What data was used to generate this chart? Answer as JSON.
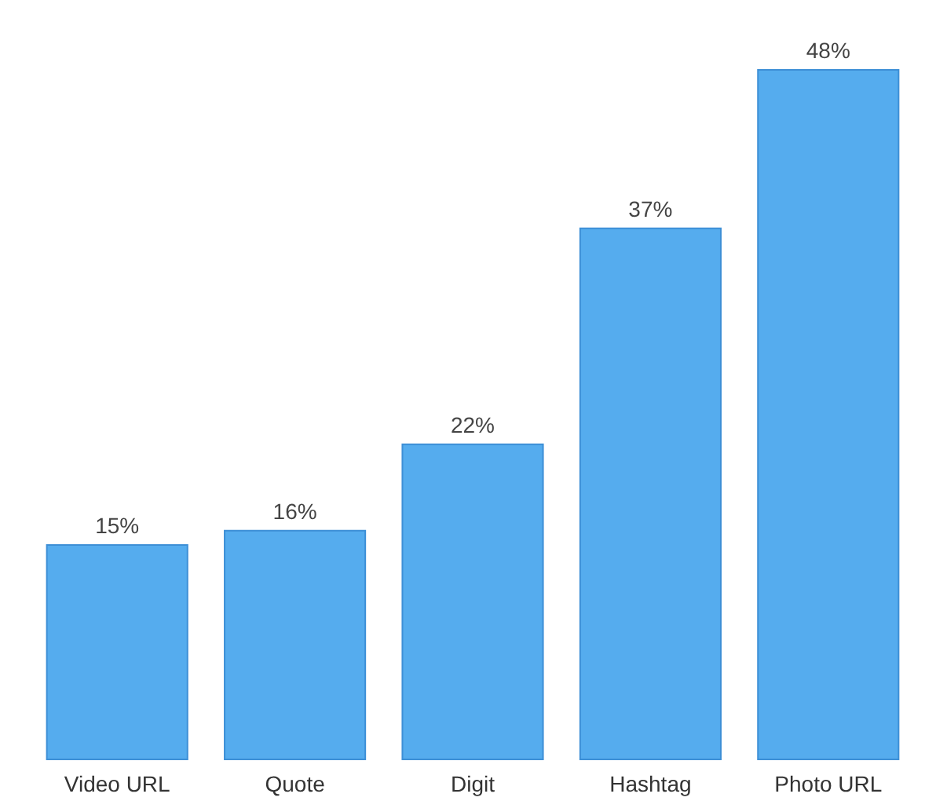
{
  "chart_data": {
    "type": "bar",
    "categories": [
      "Video URL",
      "Quote",
      "Digit",
      "Hashtag",
      "Photo URL"
    ],
    "values": [
      15,
      16,
      22,
      37,
      48
    ],
    "value_labels": [
      "15%",
      "16%",
      "22%",
      "37%",
      "48%"
    ],
    "color": "#55acee"
  }
}
